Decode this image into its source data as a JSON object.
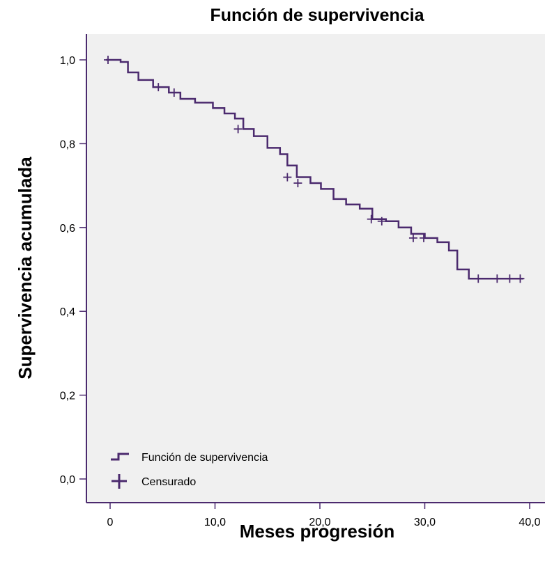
{
  "chart_data": {
    "type": "line",
    "title": "Función de supervivencia",
    "xlabel": "Meses progresión",
    "ylabel": "Supervivencia acumulada",
    "xlim": [
      0,
      40
    ],
    "ylim": [
      0,
      1
    ],
    "x_ticks": [
      "0",
      "10,0",
      "20,0",
      "30,0",
      "40,0"
    ],
    "y_ticks": [
      "0,0",
      "0,2",
      "0,4",
      "0,6",
      "0,8",
      "1,0"
    ],
    "grid": false,
    "legend_position": "bottom-left",
    "colors": {
      "line": "#4b2a6e",
      "plot_background": "#f0f0f0",
      "frame": "#4b2a6e"
    },
    "series": [
      {
        "name": "Función de supervivencia",
        "x": [
          -0.4,
          1.0,
          1.7,
          2.7,
          4.1,
          5.6,
          6.7,
          8.1,
          9.8,
          10.9,
          11.9,
          12.7,
          13.7,
          15.0,
          16.2,
          16.9,
          17.8,
          19.1,
          20.1,
          21.3,
          22.5,
          23.8,
          25.0,
          26.3,
          27.5,
          28.7,
          30.0,
          31.2,
          32.3,
          33.1,
          34.2,
          39.4
        ],
        "y": [
          1.0,
          0.995,
          0.97,
          0.952,
          0.935,
          0.922,
          0.907,
          0.898,
          0.885,
          0.872,
          0.86,
          0.835,
          0.818,
          0.79,
          0.775,
          0.748,
          0.72,
          0.706,
          0.692,
          0.668,
          0.655,
          0.645,
          0.62,
          0.615,
          0.6,
          0.585,
          0.575,
          0.565,
          0.545,
          0.5,
          0.478,
          0.478
        ]
      },
      {
        "name": "Censurado",
        "type": "scatter",
        "x": [
          -0.2,
          4.6,
          6.1,
          12.2,
          16.9,
          17.9,
          24.9,
          25.9,
          28.9,
          29.9,
          35.1,
          36.9,
          38.1,
          39.1
        ],
        "y": [
          1.0,
          0.935,
          0.922,
          0.835,
          0.72,
          0.706,
          0.62,
          0.615,
          0.575,
          0.575,
          0.478,
          0.478,
          0.478,
          0.478
        ]
      }
    ]
  }
}
